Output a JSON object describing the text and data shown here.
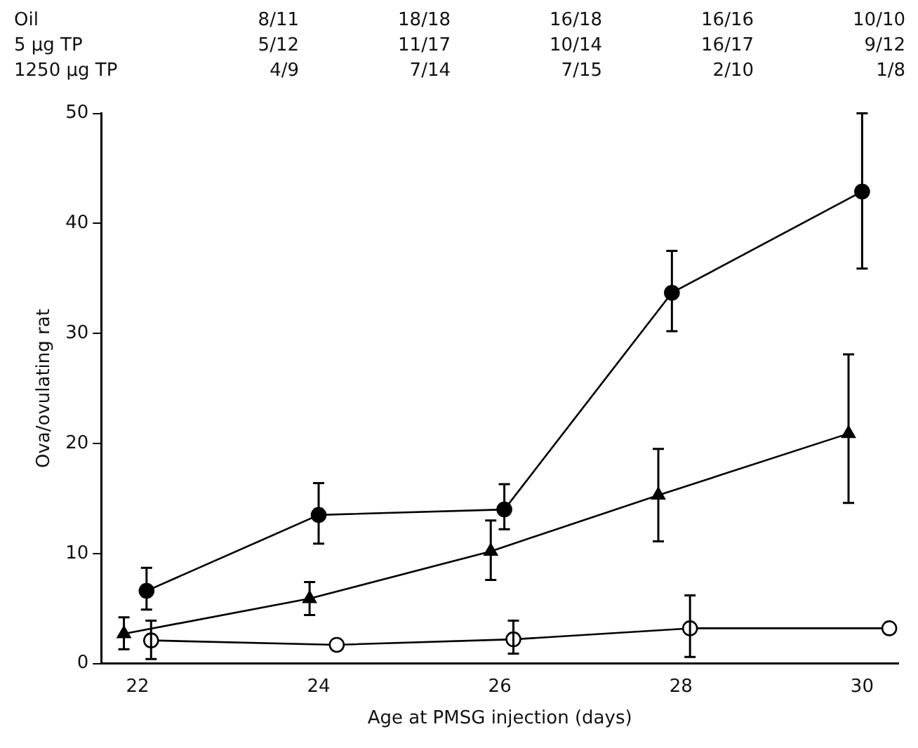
{
  "chart_data": {
    "type": "line",
    "xlabel": "Age at PMSG injection (days)",
    "ylabel": "Ova/ovulating rat",
    "annotations": [
      "Oil",
      "8/11",
      "18/18",
      "16/18",
      "16/16",
      "10/10",
      "5 µg TP",
      "5/12",
      "11/17",
      "10/14",
      "16/17",
      "9/12",
      "1250 µg TP",
      "4/9",
      "7/14",
      "7/15",
      "2/10",
      "1/8"
    ],
    "xlim": [
      21.6,
      30.4
    ],
    "xticks": [
      22,
      24,
      26,
      28,
      30
    ],
    "ylim": [
      0,
      50
    ],
    "yticks": [
      0,
      10,
      20,
      30,
      40,
      50
    ],
    "grid": false,
    "legend": false,
    "line_style": "solid",
    "series": [
      {
        "color": "#000000",
        "marker": "circle",
        "x": [
          22.1,
          24,
          26.05,
          27.9,
          30
        ],
        "values": [
          6.6,
          13.5,
          14.0,
          33.7,
          42.9
        ],
        "errors": [
          [
            4.9,
            8.7
          ],
          [
            10.9,
            16.4
          ],
          [
            12.2,
            16.3
          ],
          [
            30.2,
            37.5
          ],
          [
            35.9,
            50
          ]
        ]
      },
      {
        "color": "#000000",
        "marker": "triangle",
        "x": [
          21.85,
          23.9,
          25.9,
          27.75,
          29.85
        ],
        "values": [
          2.7,
          5.9,
          10.2,
          15.3,
          20.9
        ],
        "errors": [
          [
            1.3,
            4.2
          ],
          [
            4.4,
            7.4
          ],
          [
            7.6,
            13
          ],
          [
            11.1,
            19.5
          ],
          [
            14.6,
            28.1
          ]
        ]
      },
      {
        "color": "#ffffff",
        "marker": "circle",
        "x": [
          22.15,
          24.2,
          26.15,
          28.1,
          30.3
        ],
        "values": [
          2.1,
          1.7,
          2.2,
          3.2,
          3.2
        ],
        "errors": [
          [
            0.4,
            3.9
          ],
          null,
          [
            0.9,
            3.9
          ],
          [
            0.6,
            6.2
          ],
          null
        ]
      }
    ]
  }
}
